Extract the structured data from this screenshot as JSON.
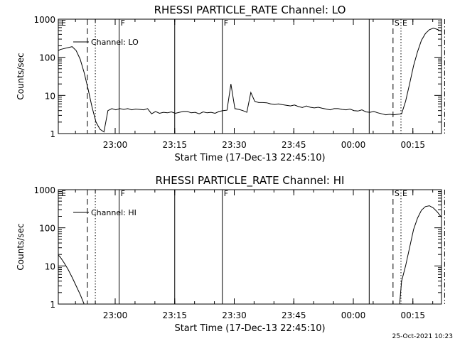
{
  "footer": {
    "date_stamp": "25-Oct-2021 10:23"
  },
  "chart_data": [
    {
      "type": "line",
      "title": "RHESSI PARTICLE_RATE Channel: LO",
      "xlabel": "Start Time (17-Dec-13 22:45:10)",
      "ylabel": "Counts/sec",
      "y_scale": "log",
      "ylim": [
        1,
        1000
      ],
      "xlim_minutes_from_start": [
        0,
        98
      ],
      "x_ticks": [
        "23:00",
        "23:15",
        "23:30",
        "23:45",
        "00:00",
        "00:15"
      ],
      "y_ticks": [
        "1",
        "10",
        "100",
        "1000"
      ],
      "legend": {
        "position": "top-left",
        "entries": [
          "Channel: LO"
        ]
      },
      "markers": [
        {
          "label": "E",
          "style": "none",
          "x": "22:45"
        },
        {
          "label": "",
          "style": "dashed",
          "x": "22:53"
        },
        {
          "label": "",
          "style": "dotted",
          "x": "22:55"
        },
        {
          "label": "F",
          "style": "solid",
          "x": "23:01"
        },
        {
          "label": "",
          "style": "solid",
          "x": "23:15"
        },
        {
          "label": "F",
          "style": "solid",
          "x": "23:27"
        },
        {
          "label": "",
          "style": "solid",
          "x": "00:04"
        },
        {
          "label": "S",
          "style": "dashed",
          "x": "00:10"
        },
        {
          "label": "E",
          "style": "dotted",
          "x": "00:12"
        },
        {
          "label": "",
          "style": "dash-dot",
          "x": "00:23"
        }
      ],
      "series": [
        {
          "name": "Channel: LO",
          "x": [
            0,
            1,
            2,
            3,
            4,
            5,
            6,
            7,
            8,
            9,
            10,
            11,
            12,
            13,
            14,
            15,
            16,
            17,
            18,
            19,
            20,
            21,
            22,
            23,
            24,
            25,
            26,
            27,
            28,
            29,
            30,
            31,
            32,
            33,
            34,
            35,
            36,
            37,
            38,
            39,
            40,
            41,
            42,
            43,
            44,
            45,
            46,
            47,
            48,
            49,
            50,
            51,
            52,
            53,
            54,
            55,
            56,
            57,
            58,
            59,
            60,
            61,
            62,
            63,
            64,
            65,
            66,
            67,
            68,
            69,
            70,
            71,
            72,
            73,
            74,
            75,
            76,
            77,
            78,
            79,
            80,
            81,
            82,
            83,
            84,
            85,
            86,
            87,
            88,
            89,
            90,
            91,
            92,
            93,
            94,
            95,
            96,
            97,
            98
          ],
          "y": [
            140,
            160,
            170,
            180,
            190,
            150,
            90,
            40,
            15,
            5,
            2,
            1.3,
            1.1,
            4,
            4.5,
            4.2,
            4.5,
            4.3,
            4.5,
            4.2,
            4.4,
            4.3,
            4.2,
            4.5,
            3.3,
            3.8,
            3.4,
            3.6,
            3.5,
            3.7,
            3.4,
            3.6,
            3.8,
            3.8,
            3.5,
            3.6,
            3.3,
            3.7,
            3.5,
            3.6,
            3.4,
            3.8,
            4,
            4.1,
            20,
            4.5,
            4.3,
            4,
            3.6,
            12,
            7,
            6.5,
            6.5,
            6.4,
            6,
            5.8,
            6,
            5.7,
            5.5,
            5.3,
            5.6,
            5.1,
            4.8,
            5.3,
            4.9,
            4.7,
            4.9,
            4.6,
            4.4,
            4.2,
            4.5,
            4.5,
            4.3,
            4.2,
            4.4,
            4,
            3.9,
            4.2,
            3.7,
            3.6,
            3.8,
            3.5,
            3.3,
            3.1,
            3.2,
            3.1,
            3.2,
            3.3,
            7,
            20,
            60,
            140,
            280,
            420,
            530,
            580,
            540,
            480,
            330
          ]
        }
      ]
    },
    {
      "type": "line",
      "title": "RHESSI PARTICLE_RATE Channel: HI",
      "xlabel": "Start Time (17-Dec-13 22:45:10)",
      "ylabel": "Counts/sec",
      "y_scale": "log",
      "ylim": [
        1,
        1000
      ],
      "xlim_minutes_from_start": [
        0,
        98
      ],
      "x_ticks": [
        "23:00",
        "23:15",
        "23:30",
        "23:45",
        "00:00",
        "00:15"
      ],
      "y_ticks": [
        "1",
        "10",
        "100",
        "1000"
      ],
      "legend": {
        "position": "top-left",
        "entries": [
          "Channel: HI"
        ]
      },
      "markers": [
        {
          "label": "E",
          "style": "none",
          "x": "22:45"
        },
        {
          "label": "",
          "style": "dashed",
          "x": "22:53"
        },
        {
          "label": "",
          "style": "dotted",
          "x": "22:55"
        },
        {
          "label": "F",
          "style": "solid",
          "x": "23:01"
        },
        {
          "label": "",
          "style": "solid",
          "x": "23:15"
        },
        {
          "label": "F",
          "style": "solid",
          "x": "23:27"
        },
        {
          "label": "",
          "style": "solid",
          "x": "00:04"
        },
        {
          "label": "S",
          "style": "dashed",
          "x": "00:10"
        },
        {
          "label": "E",
          "style": "dotted",
          "x": "00:12"
        },
        {
          "label": "",
          "style": "dash-dot",
          "x": "00:23"
        }
      ],
      "series": [
        {
          "name": "Channel: HI",
          "segments": [
            {
              "x": [
                0,
                1,
                2,
                3,
                4,
                5,
                6,
                7
              ],
              "y": [
                22,
                17,
                12,
                8,
                5,
                3,
                1.8,
                1
              ]
            },
            {
              "x": [
                86.5,
                87,
                88,
                89,
                90,
                91,
                92,
                93,
                94,
                95,
                96,
                97,
                98
              ],
              "y": [
                1,
                4,
                10,
                30,
                90,
                180,
                290,
                360,
                380,
                330,
                260,
                190,
                120
              ]
            }
          ]
        }
      ]
    }
  ]
}
